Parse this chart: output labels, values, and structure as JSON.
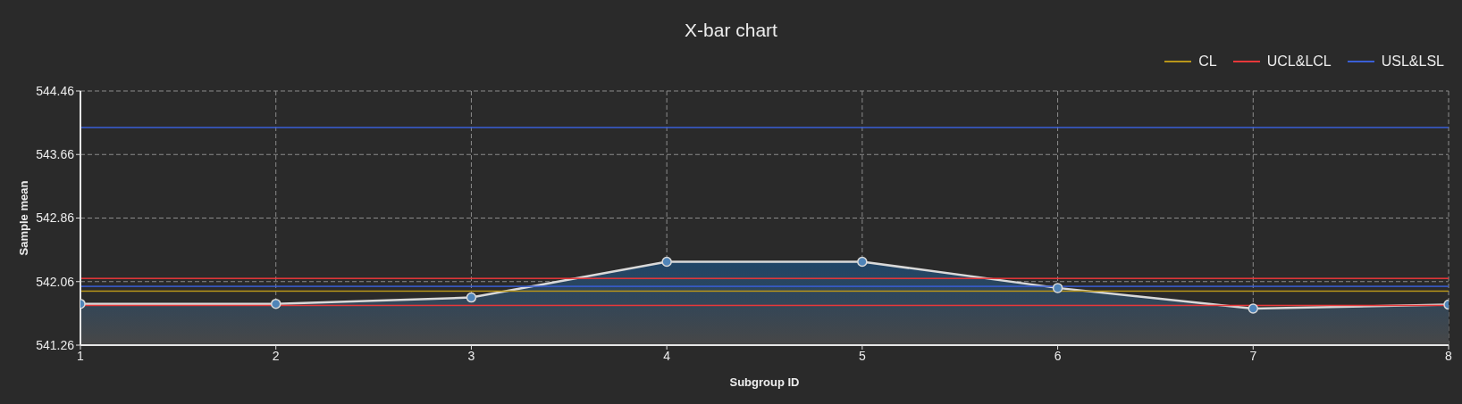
{
  "chart_data": {
    "type": "area",
    "title": "X-bar chart",
    "xlabel": "Subgroup ID",
    "ylabel": "Sample mean",
    "x": [
      1,
      2,
      3,
      4,
      5,
      6,
      7,
      8
    ],
    "values": [
      541.78,
      541.78,
      541.86,
      542.31,
      542.31,
      541.98,
      541.72,
      541.77
    ],
    "color": "#d9d9d9",
    "xlim": [
      1,
      8
    ],
    "xticks": [
      1,
      2,
      3,
      4,
      5,
      6,
      7,
      8
    ],
    "ylim": [
      541.26,
      544.46
    ],
    "yticks": [
      541.26,
      542.06,
      542.86,
      543.66,
      544.46
    ],
    "ref_lines": [
      {
        "axis": "y",
        "value": 541.94,
        "label": "CL",
        "color": "#b8961a"
      },
      {
        "axis": "y",
        "value": 542.1,
        "label": "UCL&LCL",
        "color": "#e8383a"
      },
      {
        "axis": "y",
        "value": 541.76,
        "color": "#e8383a"
      },
      {
        "axis": "y",
        "value": 544.0,
        "label": "USL&LSL",
        "color": "#3a5fd6"
      },
      {
        "axis": "y",
        "value": 542.0,
        "color": "#3a5fd6"
      }
    ],
    "grid": true,
    "legend": "top right",
    "marker": "circle"
  }
}
